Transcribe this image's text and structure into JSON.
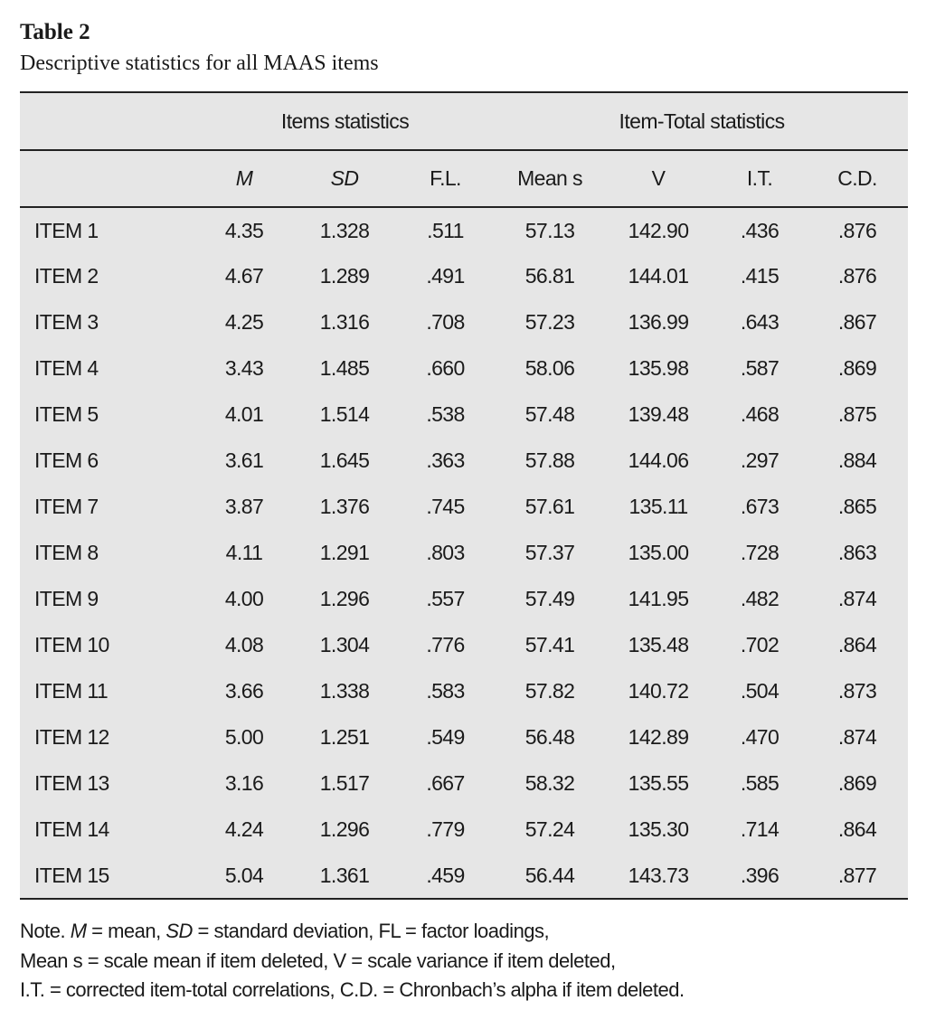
{
  "title": "Table 2",
  "subtitle": "Descriptive statistics for all MAAS items",
  "group_headers": [
    "Items statistics",
    "Item-Total statistics"
  ],
  "column_headers": [
    "M",
    "SD",
    "F.L.",
    "Mean s",
    "V",
    "I.T.",
    "C.D."
  ],
  "rows": [
    [
      "ITEM 1",
      "4.35",
      "1.328",
      ".511",
      "57.13",
      "142.90",
      ".436",
      ".876"
    ],
    [
      "ITEM 2",
      "4.67",
      "1.289",
      ".491",
      "56.81",
      "144.01",
      ".415",
      ".876"
    ],
    [
      "ITEM 3",
      "4.25",
      "1.316",
      ".708",
      "57.23",
      "136.99",
      ".643",
      ".867"
    ],
    [
      "ITEM 4",
      "3.43",
      "1.485",
      ".660",
      "58.06",
      "135.98",
      ".587",
      ".869"
    ],
    [
      "ITEM 5",
      "4.01",
      "1.514",
      ".538",
      "57.48",
      "139.48",
      ".468",
      ".875"
    ],
    [
      "ITEM 6",
      "3.61",
      "1.645",
      ".363",
      "57.88",
      "144.06",
      ".297",
      ".884"
    ],
    [
      "ITEM 7",
      "3.87",
      "1.376",
      ".745",
      "57.61",
      "135.11",
      ".673",
      ".865"
    ],
    [
      "ITEM 8",
      "4.11",
      "1.291",
      ".803",
      "57.37",
      "135.00",
      ".728",
      ".863"
    ],
    [
      "ITEM 9",
      "4.00",
      "1.296",
      ".557",
      "57.49",
      "141.95",
      ".482",
      ".874"
    ],
    [
      "ITEM 10",
      "4.08",
      "1.304",
      ".776",
      "57.41",
      "135.48",
      ".702",
      ".864"
    ],
    [
      "ITEM 11",
      "3.66",
      "1.338",
      ".583",
      "57.82",
      "140.72",
      ".504",
      ".873"
    ],
    [
      "ITEM 12",
      "5.00",
      "1.251",
      ".549",
      "56.48",
      "142.89",
      ".470",
      ".874"
    ],
    [
      "ITEM 13",
      "3.16",
      "1.517",
      ".667",
      "58.32",
      "135.55",
      ".585",
      ".869"
    ],
    [
      "ITEM 14",
      "4.24",
      "1.296",
      ".779",
      "57.24",
      "135.30",
      ".714",
      ".864"
    ],
    [
      "ITEM 15",
      "5.04",
      "1.361",
      ".459",
      "56.44",
      "143.73",
      ".396",
      ".877"
    ]
  ],
  "note": {
    "l1a": "Note. ",
    "l1b": "M",
    "l1c": " = mean, ",
    "l1d": "SD",
    "l1e": " = standard deviation, FL = factor loadings,",
    "l2": "Mean s = scale mean if item deleted, V = scale variance if item deleted,",
    "l3": "I.T. = corrected item-total correlations, C.D. = Chronbach’s alpha if item deleted."
  },
  "colors": {
    "table_background": "#e6e6e6",
    "rules": "#222222"
  }
}
